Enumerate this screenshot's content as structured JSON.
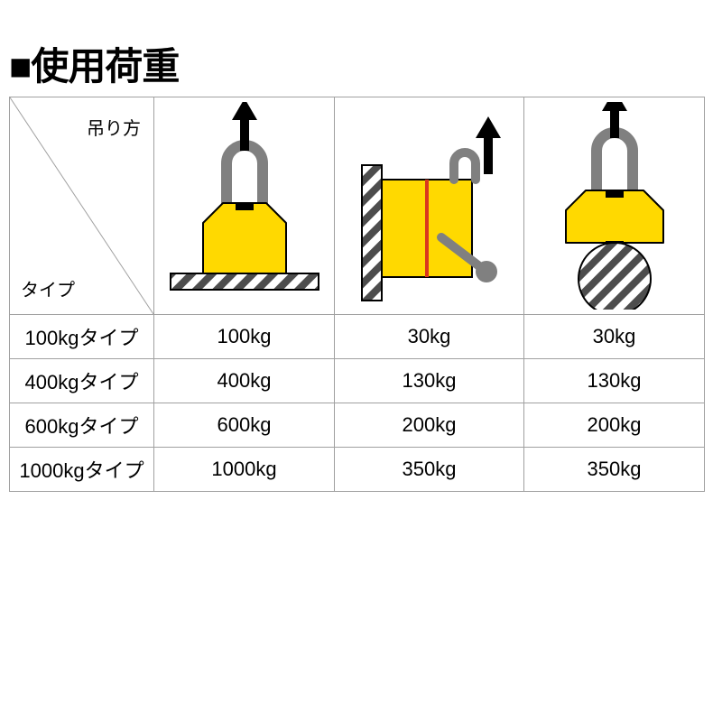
{
  "title": "■使用荷重",
  "header": {
    "top_label": "吊り方",
    "bottom_label": "タイプ"
  },
  "colors": {
    "body": "#ffd900",
    "outline": "#000000",
    "hook": "#808080",
    "hatch_dark": "#4d4d4d",
    "hatch_light": "#ffffff",
    "lever_red": "#d9381e",
    "border": "#a0a0a0"
  },
  "columns": [
    {
      "id": "flat",
      "diagram": "flat"
    },
    {
      "id": "vertical",
      "diagram": "vertical"
    },
    {
      "id": "round",
      "diagram": "round"
    }
  ],
  "rows": [
    {
      "label": "100kgタイプ",
      "values": [
        "100kg",
        "30kg",
        "30kg"
      ]
    },
    {
      "label": "400kgタイプ",
      "values": [
        "400kg",
        "130kg",
        "130kg"
      ]
    },
    {
      "label": "600kgタイプ",
      "values": [
        "600kg",
        "200kg",
        "200kg"
      ]
    },
    {
      "label": "1000kgタイプ",
      "values": [
        "1000kg",
        "350kg",
        "350kg"
      ]
    }
  ],
  "fontsize": {
    "title": 42,
    "cell": 22,
    "header_label": 20
  }
}
